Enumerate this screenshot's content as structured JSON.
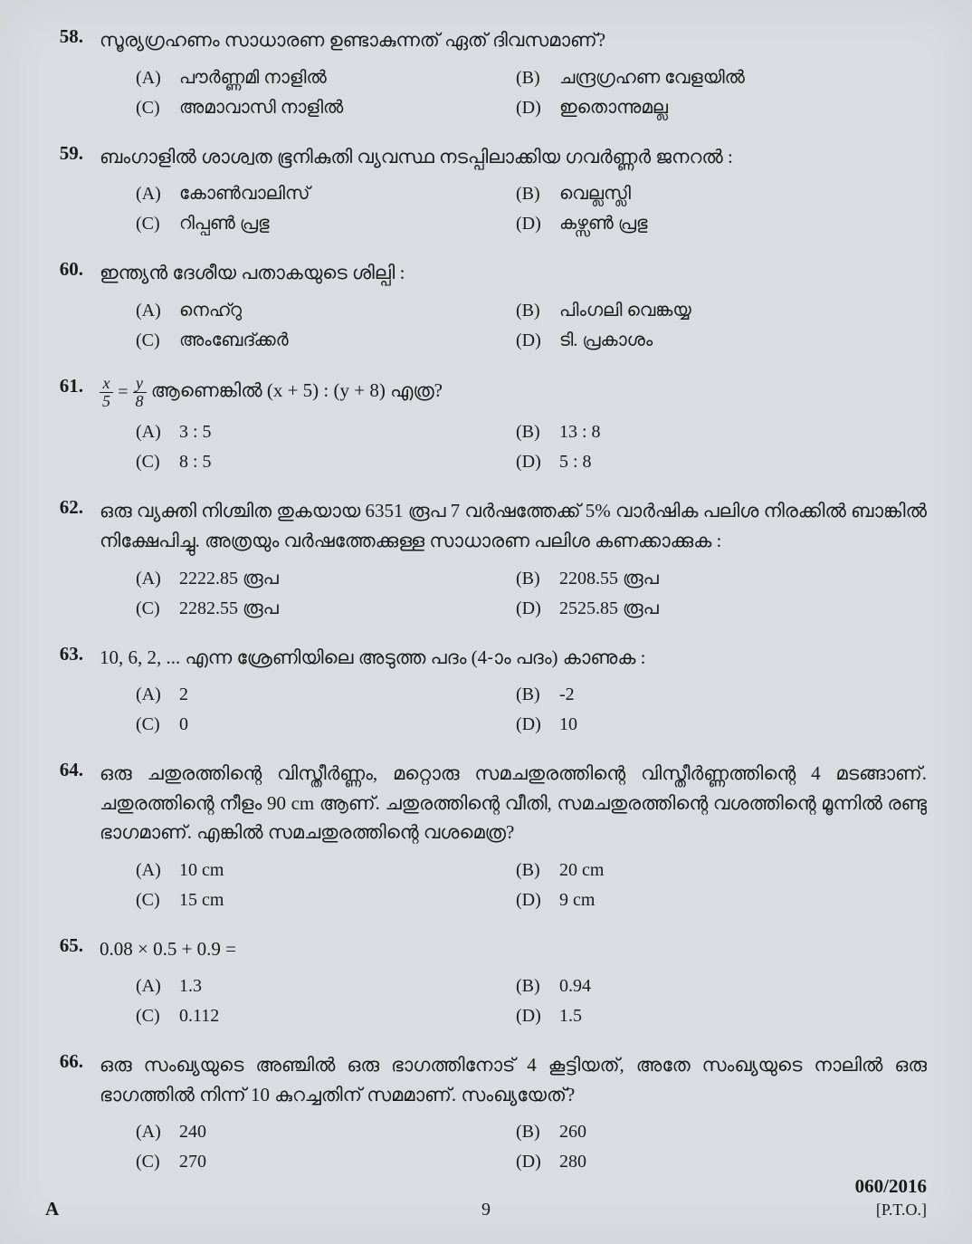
{
  "page": {
    "series": "A",
    "page_number": "9",
    "paper_code": "060/2016",
    "pto": "[P.T.O.]"
  },
  "questions": [
    {
      "num": "58.",
      "text": "സൂര്യഗ്രഹണം സാധാരണ ഉണ്ടാകുന്നത് ഏത് ദിവസമാണ്?",
      "opts": {
        "A": "പൗർണ്ണമി നാളിൽ",
        "B": "ചന്ദ്രഗ്രഹണ വേളയിൽ",
        "C": "അമാവാസി നാളിൽ",
        "D": "ഇതൊന്നുമല്ല"
      }
    },
    {
      "num": "59.",
      "text": "ബംഗാളിൽ ശാശ്വത ഭൂനികുതി വ്യവസ്ഥ നടപ്പിലാക്കിയ ഗവർണ്ണർ ജനറൽ :",
      "opts": {
        "A": "കോൺവാലിസ്",
        "B": "വെല്ലസ്ലി",
        "C": "റിപ്പൺ പ്രഭു",
        "D": "കഴ്സൺ പ്രഭു"
      }
    },
    {
      "num": "60.",
      "text": "ഇന്ത്യൻ ദേശീയ പതാകയുടെ ശില്പി :",
      "opts": {
        "A": "നെഹ്റു",
        "B": "പിംഗലി വെങ്കയ്യ",
        "C": "അംബേദ്ക്കർ",
        "D": "ടി. പ്രകാശം"
      }
    },
    {
      "num": "61.",
      "text_html": true,
      "text": "ആണെങ്കിൽ (x + 5) : (y + 8) എത്ര?",
      "opts": {
        "A": "3 : 5",
        "B": "13 : 8",
        "C": "8 : 5",
        "D": "5 : 8"
      }
    },
    {
      "num": "62.",
      "text": "ഒരു വ്യക്തി നിശ്ചിത തുകയായ 6351 രൂപ 7 വർഷത്തേക്ക് 5% വാർഷിക പലിശ നിരക്കിൽ ബാങ്കിൽ നിക്ഷേപിച്ചു. അത്രയും വർഷത്തേക്കുള്ള സാധാരണ പലിശ കണക്കാക്കുക :",
      "opts": {
        "A": "2222.85 രൂപ",
        "B": "2208.55 രൂപ",
        "C": "2282.55 രൂപ",
        "D": "2525.85 രൂപ"
      }
    },
    {
      "num": "63.",
      "text": "10, 6, 2, ... എന്ന ശ്രേണിയിലെ അടുത്ത പദം (4-ാം പദം) കാണുക :",
      "opts": {
        "A": "2",
        "B": "-2",
        "C": "0",
        "D": "10"
      }
    },
    {
      "num": "64.",
      "text": "ഒരു ചതുരത്തിന്റെ വിസ്തീർണ്ണം, മറ്റൊരു സമചതുരത്തിന്റെ വിസ്തീർണ്ണത്തിന്റെ 4 മടങ്ങാണ്. ചതുരത്തിന്റെ നീളം 90 cm ആണ്. ചതുരത്തിന്റെ വീതി, സമചതുരത്തിന്റെ വശത്തിന്റെ മൂന്നിൽ രണ്ടു ഭാഗമാണ്. എങ്കിൽ സമചതുരത്തിന്റെ വശമെത്ര?",
      "opts": {
        "A": "10 cm",
        "B": "20 cm",
        "C": "15 cm",
        "D": "9 cm"
      }
    },
    {
      "num": "65.",
      "text": "0.08 × 0.5 + 0.9 =",
      "opts": {
        "A": "1.3",
        "B": "0.94",
        "C": "0.112",
        "D": "1.5"
      }
    },
    {
      "num": "66.",
      "text": "ഒരു സംഖ്യയുടെ അഞ്ചിൽ ഒരു ഭാഗത്തിനോട് 4 കൂട്ടിയത്, അതേ സംഖ്യയുടെ നാലിൽ ഒരു ഭാഗത്തിൽ നിന്ന് 10 കുറച്ചതിന് സമമാണ്. സംഖ്യയേത്?",
      "opts": {
        "A": "240",
        "B": "260",
        "C": "270",
        "D": "280"
      }
    }
  ]
}
